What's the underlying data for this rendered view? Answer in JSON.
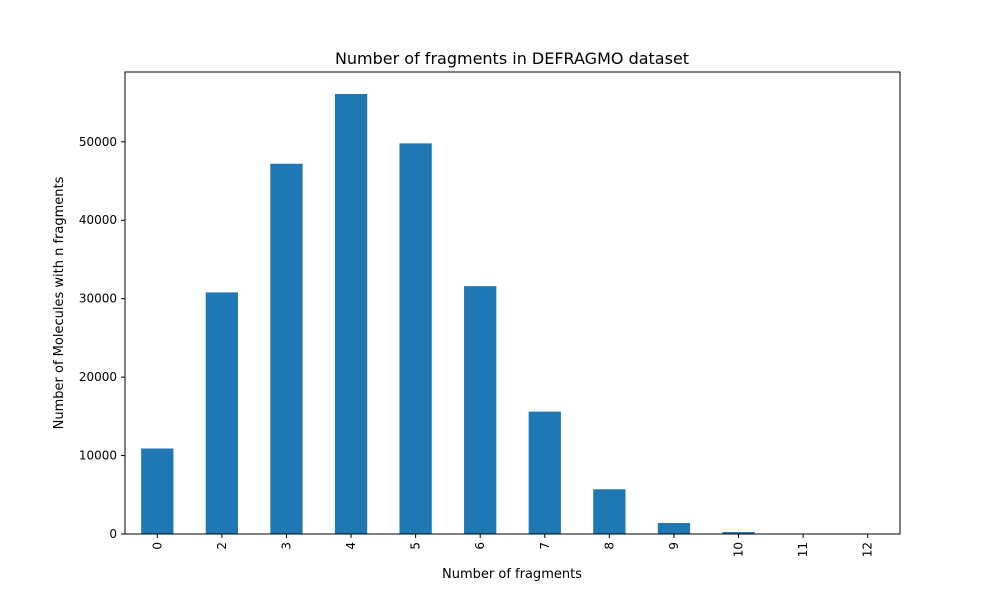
{
  "chart_data": {
    "type": "bar",
    "title": "Number of fragments in DEFRAGMO dataset",
    "xlabel": "Number of fragments",
    "ylabel": "Number of Molecules with n fragments",
    "categories": [
      "0",
      "2",
      "3",
      "4",
      "5",
      "6",
      "7",
      "8",
      "9",
      "10",
      "11",
      "12"
    ],
    "values": [
      10900,
      30800,
      47200,
      56100,
      49800,
      31600,
      15600,
      5700,
      1400,
      250,
      30,
      5
    ],
    "ylim": [
      0,
      58900
    ],
    "yticks": [
      0,
      10000,
      20000,
      30000,
      40000,
      50000
    ],
    "ytick_labels": [
      "0",
      "10000",
      "20000",
      "30000",
      "40000",
      "50000"
    ],
    "grid": false,
    "x_tick_rotation": "vertical",
    "bar_color": "#1f77b4"
  }
}
